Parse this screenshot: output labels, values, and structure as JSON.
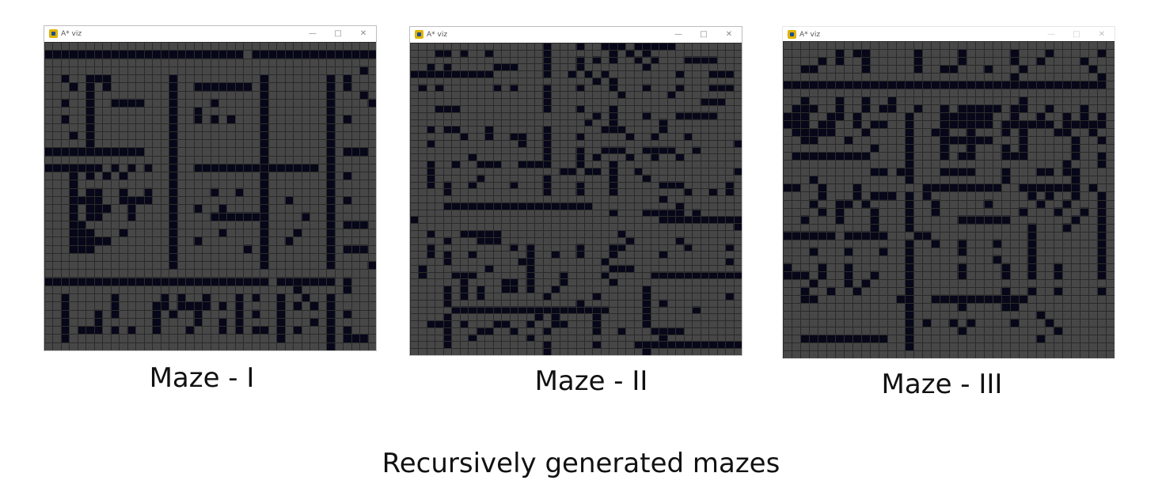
{
  "colors": {
    "floor": "#474747",
    "grid_line": "#2b2b2b",
    "wall": "#070719",
    "window_bg": "#ffffff"
  },
  "windows": [
    {
      "title": "A* viz",
      "caption": "Maze - I",
      "grid": [
        "........................................",
        "########################.###############",
        "........................................",
        "......................................#.",
        "..#..###.......#..........#.......#.#...",
        "...#.#.#.......#..#######.#.......#.#...",
        ".....#.........#..........#.......#...#.",
        "..#..#..####...#....#.....#.......#....#",
        ".....#.........#..#.......#.......#.....",
        "..#..#.........#..#.#.#...#.......#.#...",
        ".....#.........#..........#.......#.....",
        "...#.#.........#..........#.......#.....",
        ".....#.........#..........#.......#.....",
        "############...#..........#.......#.###.",
        "...............#..........#.......#.....",
        "#######.#.#.#..#..###############.#.....",
        "...#.#.#.#.....#..........#.......#.#...",
        "...#...........#..........#.......#.....",
        "...#.##..#..#..#....#..#..#.......#.....",
        "...####..####..#..........#..#....#.#...",
        "...#.###..#....#..#..#....#.......#.....",
        "...#.##...#....#....#######....#..#.....",
        "...##..........#..........#.......#.###.",
        "...###...#.....#.....#....#...#...#.....",
        "...#####.......#..#.......#..#....#.....",
        "...###.........#........#.#.......#.###.",
        "...............#..........#.......#.....",
        "...............#..........#.......#....#",
        "........................................",
        "###########################.#######.#...",
        "..............................#.....#...",
        "..#.....#.....#.#..#...#.#..#..#..#.....",
        "..#.....#....##.####.#.#....#.#.#.#.....",
        "..#...#.#....#.#..#....#.#..#.....#.#...",
        "..#...#......#....#..#.#....#...#.#.....",
        "..#.###.#.#..#...#...#.#.##.#.#...#.#...",
        "..#.........................#.....#.###.",
        "..................................#....."
      ]
    },
    {
      "title": "A* viz",
      "caption": "Maze - II",
      "grid": [
        "................#...#..###.#####........",
        "...##.#..#......#.......#.#.#...........",
        "................#...#.#.#..#.#...####...",
        "..#.#.....###...#...#.......#...........",
        "##########......#..#.#.#........#...###.",
        "......................#.#...............",
        ".#.#......#.#...#...#...#...#...#...###.",
        "................#........#.....#........",
        "................#..................###..",
        "...###..........#...#...#...............",
        "......................#.#...#...#####...",
        ".....................#..#.....#.........",
        "..#.##...#......#......###....#.........",
        "......#..#..##..#...#.....#..#...#......",
        "..#..........#..#......................#",
        "................#...#..###..####..#.....",
        ".......#........#...#.#...#..#..#.......",
        "..#..#..###..####...#...#...............",
        "..#...............##.##.#..#...........#",
        "..#.....#.......#.......#...#...........",
        "..#.#..#....#...#...#...#.....###.....#.",
        "....#...........#...#...#........#..#.#.",
        "..............................#.........",
        "....##################..........#.......",
        "........................#...#####.#.....",
        "#.............................##########",
        ".......................................#",
        "..#...#####..............#..............",
        "....#...###...............#.....#.......",
        "..#.........#.#.....#...##.......#....#.",
        "..#.#..#......#..#..#...#.....#.........",
        "....#........##........#..............#.",
        ".#.......#....#.........###.............",
        ".#...###......#...#....#.....###########",
        "......#....##.#...#.....#...............",
        "....#.#.#..##.#..#..........#...........",
        "....#.#.#.......#.....#.....#.........#.",
        "....#...............#.......#.#.........",
        ".....###################....#.....#.....",
        "....#..........#.#....#.....#...........",
        "..###.#...##..#..##...#.....#...........",
        "....#...##..#...#.....#..#...####.......",
        "....#..#......#...............#.........",
        "....#...........#.....#....#############",
        "................#...........#.........."
      ]
    },
    {
      "title": "A* viz",
      "caption": "Maze - III",
      "grid": [
        ".....................................",
        "......#.##.....#....#.....#...#.....#",
        "....#.#..#.....#....#.....#..#....#..",
        "..##.....#.....#..##...#...#.......#.",
        "..........................#.........#",
        "#####################################",
        ".....................................",
        "..#...#..#..#..............#.........",
        ".###..#..#.##..#..#.#####.##..#...#..",
        "###..##.#.....#...######..#..#..#.#.#",
        "###.##..#.##..#...######.######.#####",
        ".#####...#....#..##..#...#.#...##..#.",
        "..##...#......#...######...#.....#..#",
        "..........#...#...#..#...#.#.....#...",
        ".#########....#...#.##...###.....#..#",
        "..............#.................#...#",
        "..........##.##...####...#...##.##...",
        "...#..........#..........#.......#...",
        "##..#...#.......#########..#######.#.",
        "....#...#.###.#.#...........#.#..#..#",
        "...#..##.#....#..#.....#.....#..#...#",
        "....#.#...#...#..#.........#...#..#.#",
        "..#...#...#...#.....######.......#..#",
        "..........#...#.............#...#...#",
        "######.#####...##...........#.......#",
        "..............#..#..#...#...#.......#",
        "...#...#...#..#.....#.......#.......#",
        "..............#.........#...#.......#",
        "#...#..#......#.....#....#..#..#....#",
        "###.#..#..#...#.....#....#..#..#....#",
        "...#...#.#....#......................",
        "..#..#..#.....#..........#..#..#....#",
        "..##.........##..###########.........",
        "..............#.....#....##..........",
        "..............#..............#.......",
        "..............#.#..#.#....#...#......",
        "..............#.....#..........#.....",
        "..##########..#..............#.......",
        "..............#.......................",
        "....................................."
      ]
    }
  ],
  "figure_caption": "Recursively generated mazes"
}
